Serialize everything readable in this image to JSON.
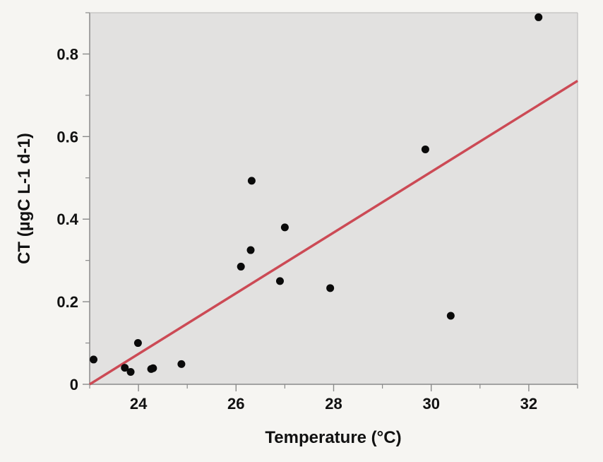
{
  "chart_data": {
    "type": "scatter",
    "title": "",
    "xlabel": "Temperature  (°C)",
    "ylabel": "CT (µgC L-1 d-1)",
    "xlim": [
      23.0,
      33.0
    ],
    "ylim": [
      0.0,
      0.9
    ],
    "x_ticks": [
      24,
      26,
      28,
      30,
      32
    ],
    "x_tick_labels": [
      "24",
      "26",
      "28",
      "30",
      "32"
    ],
    "y_ticks": [
      0,
      0.2,
      0.4,
      0.6,
      0.8
    ],
    "y_tick_labels": [
      "0",
      "0.2",
      "0.4",
      "0.6",
      "0.8"
    ],
    "grid": false,
    "legend": "none",
    "colors": {
      "plot_background": "#e2e1e0",
      "page_background": "#f6f5f2",
      "axis": "#8a8a8a",
      "points": "#0a0a0a",
      "fit_line": "#cc4a55"
    },
    "series": [
      {
        "points": [
          {
            "x": 23.08,
            "y": 0.06
          },
          {
            "x": 23.72,
            "y": 0.04
          },
          {
            "x": 23.84,
            "y": 0.03
          },
          {
            "x": 23.99,
            "y": 0.1
          },
          {
            "x": 24.26,
            "y": 0.037
          },
          {
            "x": 24.3,
            "y": 0.039
          },
          {
            "x": 24.88,
            "y": 0.049
          },
          {
            "x": 26.1,
            "y": 0.285
          },
          {
            "x": 26.3,
            "y": 0.325
          },
          {
            "x": 26.32,
            "y": 0.493
          },
          {
            "x": 26.9,
            "y": 0.25
          },
          {
            "x": 27.0,
            "y": 0.38
          },
          {
            "x": 27.93,
            "y": 0.233
          },
          {
            "x": 29.88,
            "y": 0.569
          },
          {
            "x": 30.4,
            "y": 0.166
          },
          {
            "x": 32.2,
            "y": 0.889
          }
        ]
      }
    ],
    "fit_line": {
      "x": [
        23.0,
        33.0
      ],
      "y": [
        0.0,
        0.735
      ]
    }
  }
}
